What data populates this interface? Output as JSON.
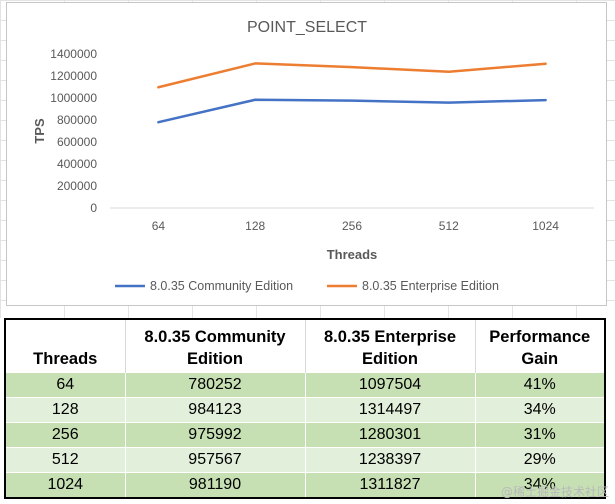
{
  "chart_data": {
    "type": "line",
    "title": "POINT_SELECT",
    "xlabel": "Threads",
    "ylabel": "TPS",
    "categories": [
      "64",
      "128",
      "256",
      "512",
      "1024"
    ],
    "ylim": [
      0,
      1400000
    ],
    "yticks": [
      "0",
      "200000",
      "400000",
      "600000",
      "800000",
      "1000000",
      "1200000",
      "1400000"
    ],
    "grid": false,
    "legend": "bottom",
    "series": [
      {
        "name": "8.0.35 Community Edition",
        "color": "#4472c4",
        "values": [
          780252,
          984123,
          975992,
          957567,
          981190
        ]
      },
      {
        "name": "8.0.35 Enterprise Edition",
        "color": "#ed7d31",
        "values": [
          1097504,
          1314497,
          1280301,
          1238397,
          1311827
        ]
      }
    ]
  },
  "table": {
    "headers": [
      "Threads",
      "8.0.35 Community Edition",
      "8.0.35 Enterprise Edition",
      "Performance Gain"
    ],
    "rows": [
      [
        "64",
        "780252",
        "1097504",
        "41%"
      ],
      [
        "128",
        "984123",
        "1314497",
        "34%"
      ],
      [
        "256",
        "975992",
        "1280301",
        "31%"
      ],
      [
        "512",
        "957567",
        "1238397",
        "29%"
      ],
      [
        "1024",
        "981190",
        "1311827",
        "34%"
      ]
    ]
  },
  "watermark": "@稀土掘金技术社区"
}
